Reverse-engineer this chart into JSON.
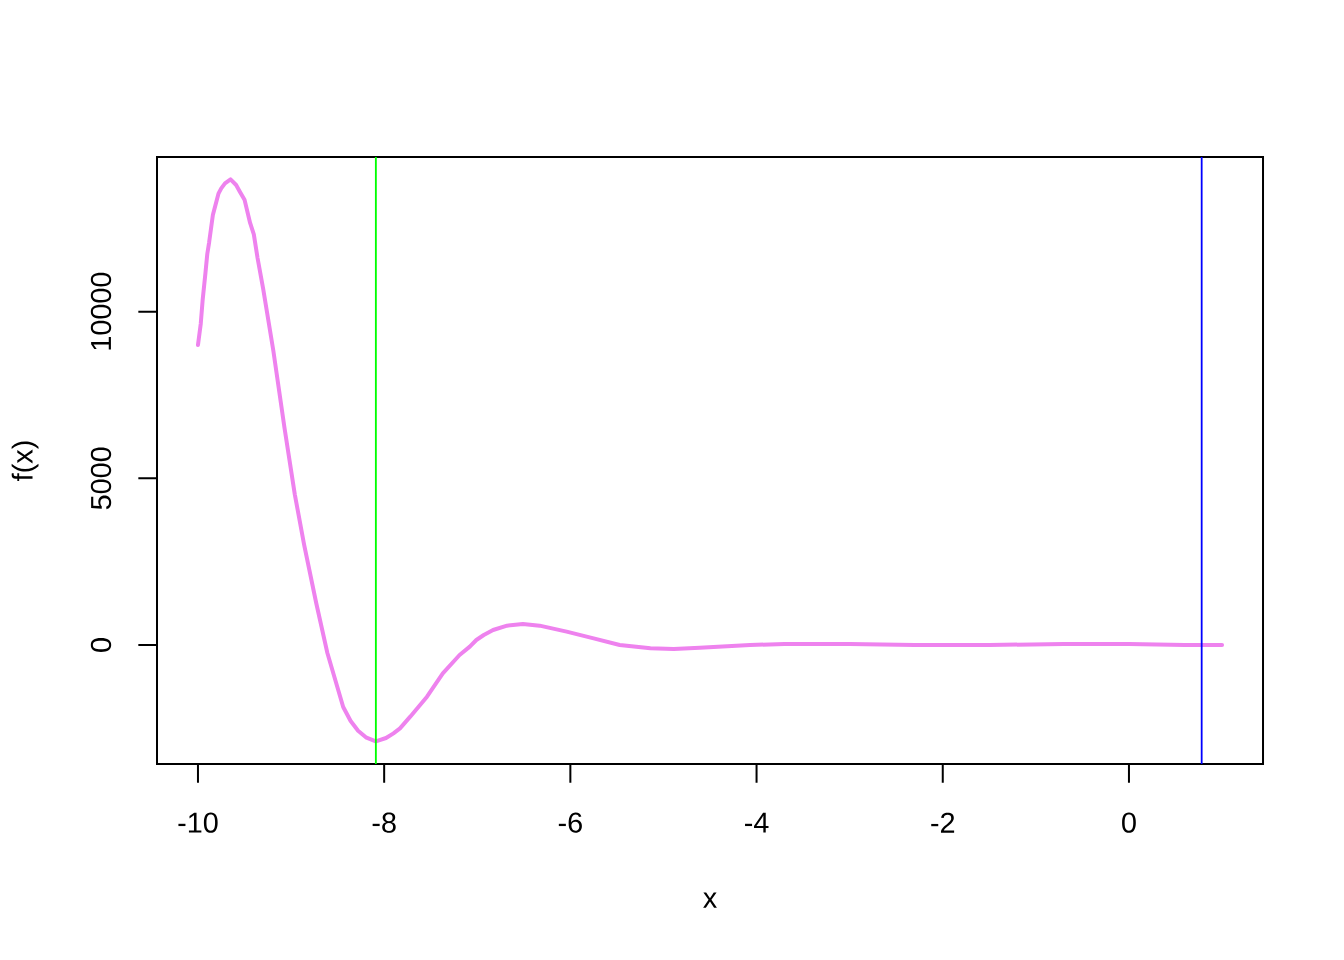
{
  "chart_data": {
    "type": "line",
    "xlabel": "x",
    "ylabel": "f(x)",
    "xlim": [
      -10.44,
      1.44
    ],
    "ylim": [
      -3570,
      14640
    ],
    "xticks": [
      -10,
      -8,
      -6,
      -4,
      -2,
      0
    ],
    "yticks": [
      0,
      5000,
      10000
    ],
    "x": [
      -10,
      -9.97,
      -9.95,
      -9.92,
      -9.9,
      -9.88,
      -9.84,
      -9.78,
      -9.75,
      -9.71,
      -9.65,
      -9.59,
      -9.55,
      -9.5,
      -9.44,
      -9.4,
      -9.36,
      -9.3,
      -9.19,
      -9.07,
      -8.96,
      -8.86,
      -8.73,
      -8.61,
      -8.44,
      -8.36,
      -8.28,
      -8.19,
      -8.09,
      -7.98,
      -7.9,
      -7.83,
      -7.72,
      -7.54,
      -7.37,
      -7.19,
      -7.08,
      -7.01,
      -6.93,
      -6.83,
      -6.68,
      -6.51,
      -6.33,
      -6.04,
      -5.75,
      -5.47,
      -5.14,
      -4.89,
      -4.61,
      -4.07,
      -3.7,
      -3.0,
      -2.3,
      -1.5,
      -0.7,
      0,
      0.6,
      1
    ],
    "series": [
      {
        "color": "#ee82ee",
        "values": [
          9000,
          9640,
          10340,
          11150,
          11730,
          12080,
          12900,
          13540,
          13700,
          13850,
          13970,
          13800,
          13600,
          13360,
          12660,
          12320,
          11610,
          10690,
          8820,
          6500,
          4520,
          3010,
          1260,
          -240,
          -1860,
          -2280,
          -2570,
          -2780,
          -2890,
          -2790,
          -2650,
          -2500,
          -2150,
          -1550,
          -850,
          -300,
          -50,
          150,
          300,
          450,
          580,
          630,
          580,
          400,
          200,
          0,
          -100,
          -120,
          -80,
          0,
          30,
          30,
          0,
          0,
          30,
          30,
          0,
          0
        ]
      }
    ],
    "ref_lines": [
      {
        "axis": "x",
        "value": -8.09,
        "color": "#00ff00"
      },
      {
        "axis": "x",
        "value": 0.78,
        "color": "#0000ff"
      }
    ]
  }
}
